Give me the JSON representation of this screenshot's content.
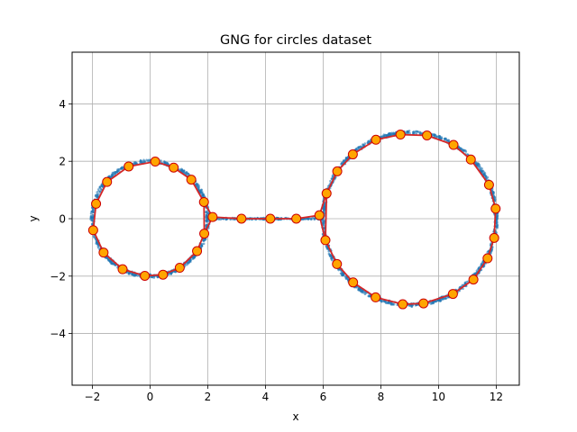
{
  "chart_data": {
    "type": "scatter",
    "title": "GNG for circles dataset",
    "xlabel": "x",
    "ylabel": "y",
    "xlim": [
      -2.7,
      12.8
    ],
    "ylim": [
      -5.8,
      5.8
    ],
    "x_ticks": [
      -2,
      0,
      2,
      4,
      6,
      8,
      10,
      12
    ],
    "y_ticks": [
      -4,
      -2,
      0,
      2,
      4
    ],
    "x_tick_labels": [
      "−2",
      "0",
      "2",
      "4",
      "6",
      "8",
      "10",
      "12"
    ],
    "y_tick_labels": [
      "−4",
      "−2",
      "0",
      "2",
      "4"
    ],
    "grid": true,
    "colors": {
      "data": "#1f77b4",
      "edges": "#d62728",
      "node_fill": "#ffa500",
      "node_edge": "#cc0000"
    },
    "series": [
      {
        "kind": "data_points",
        "circles": [
          {
            "cx": 0,
            "cy": 0,
            "r": 2
          },
          {
            "cx": 9,
            "cy": 0,
            "r": 3
          }
        ],
        "bridge": {
          "x": [
            2,
            6
          ],
          "y": 0
        }
      },
      {
        "kind": "gng_nodes_and_edges",
        "nodes_left": [
          [
            0.18,
            1.99
          ],
          [
            0.82,
            1.78
          ],
          [
            1.43,
            1.36
          ],
          [
            1.87,
            0.58
          ],
          [
            1.88,
            -0.52
          ],
          [
            1.63,
            -1.13
          ],
          [
            1.03,
            -1.71
          ],
          [
            0.45,
            -1.95
          ],
          [
            -0.18,
            -1.99
          ],
          [
            -0.95,
            -1.76
          ],
          [
            -1.61,
            -1.18
          ],
          [
            -1.97,
            -0.4
          ],
          [
            -1.87,
            0.52
          ],
          [
            -1.49,
            1.28
          ],
          [
            -0.74,
            1.82
          ]
        ],
        "bridge": [
          [
            2.17,
            0.06
          ],
          [
            3.17,
            0.0
          ],
          [
            4.17,
            0.0
          ],
          [
            5.07,
            0.0
          ],
          [
            5.87,
            0.12
          ]
        ],
        "nodes_right": [
          [
            6.12,
            0.88
          ],
          [
            6.49,
            1.65
          ],
          [
            7.03,
            2.24
          ],
          [
            7.83,
            2.75
          ],
          [
            8.68,
            2.93
          ],
          [
            9.6,
            2.9
          ],
          [
            10.52,
            2.57
          ],
          [
            11.12,
            2.06
          ],
          [
            11.75,
            1.18
          ],
          [
            11.98,
            0.35
          ],
          [
            11.93,
            -0.67
          ],
          [
            11.7,
            -1.38
          ],
          [
            11.21,
            -2.12
          ],
          [
            10.5,
            -2.62
          ],
          [
            9.48,
            -2.95
          ],
          [
            8.76,
            -2.98
          ],
          [
            7.82,
            -2.74
          ],
          [
            7.04,
            -2.22
          ],
          [
            6.48,
            -1.58
          ],
          [
            6.08,
            -0.75
          ]
        ]
      }
    ]
  }
}
